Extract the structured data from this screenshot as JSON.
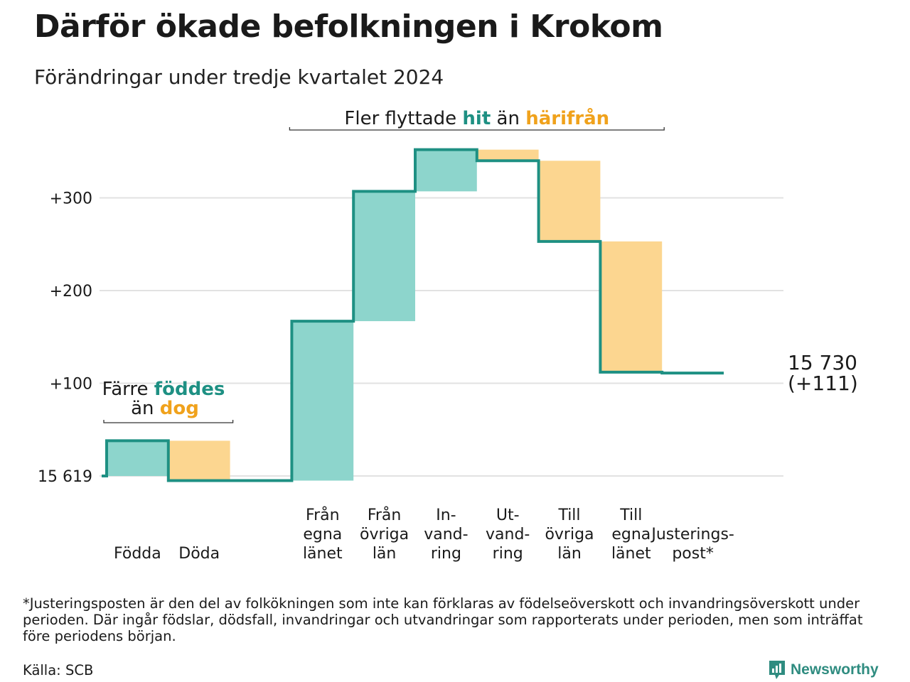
{
  "title": "Därför ökade befolkningen i Krokom",
  "subtitle": "Förändringar under tredje kvartalet 2024",
  "footnote": "*Justeringsposten är den del av folkökningen som inte kan förklaras av födelseöverskott och invandringsöverskott under perioden. Där ingår födslar, dödsfall, invandringar och utvandringar som rapporterats under perioden, men som inträffat före periodens början.",
  "source": "Källa: SCB",
  "brand": "Newsworthy",
  "colors": {
    "increase_fill": "#8dd5cc",
    "decrease_fill": "#fcd690",
    "line": "#1e9083",
    "teal_text": "#1e9083",
    "orange_text": "#f0a21c",
    "grid": "#e2e2e2"
  },
  "chart_data": {
    "type": "waterfall",
    "title": "Därför ökade befolkningen i Krokom",
    "subtitle": "Förändringar under tredje kvartalet 2024",
    "base_label": "15 619",
    "base_value": 15619,
    "y_ticks": [
      {
        "value": 0,
        "label": "15 619"
      },
      {
        "value": 100,
        "label": "+100"
      },
      {
        "value": 200,
        "label": "+200"
      },
      {
        "value": 300,
        "label": "+300"
      }
    ],
    "ylim": [
      -10,
      360
    ],
    "grid": true,
    "categories": [
      {
        "label": [
          "Födda"
        ],
        "start": 0,
        "end": 38
      },
      {
        "label": [
          "Döda"
        ],
        "start": 38,
        "end": -5
      },
      {
        "label": [
          ""
        ],
        "start": -5,
        "end": -5
      },
      {
        "label": [
          "Från",
          "egna",
          "länet"
        ],
        "start": -5,
        "end": 167
      },
      {
        "label": [
          "Från",
          "övriga",
          "län"
        ],
        "start": 167,
        "end": 307
      },
      {
        "label": [
          "In-",
          "vand-",
          "ring"
        ],
        "start": 307,
        "end": 352
      },
      {
        "label": [
          "Ut-",
          "vand-",
          "ring"
        ],
        "start": 352,
        "end": 340
      },
      {
        "label": [
          "Till",
          "övriga",
          "län"
        ],
        "start": 340,
        "end": 253
      },
      {
        "label": [
          "Till",
          "egna",
          "länet"
        ],
        "start": 253,
        "end": 112
      },
      {
        "label": [
          "Justerings-",
          "post*"
        ],
        "start": 112,
        "end": 111
      }
    ],
    "end_label": [
      "15 730",
      "(+111)"
    ],
    "final_value": 15730,
    "net_change": 111,
    "annotations": [
      {
        "parts": [
          {
            "text": "Färre ",
            "style": "plain"
          },
          {
            "text": "föddes",
            "style": "teal"
          }
        ],
        "parts2": [
          {
            "text": "än ",
            "style": "plain"
          },
          {
            "text": "dog",
            "style": "orange"
          }
        ],
        "from_category": 0,
        "to_category": 1
      },
      {
        "parts": [
          {
            "text": "Fler flyttade ",
            "style": "plain"
          },
          {
            "text": "hit",
            "style": "teal"
          },
          {
            "text": " än ",
            "style": "plain"
          },
          {
            "text": "härifrån",
            "style": "orange"
          }
        ],
        "from_category": 3,
        "to_category": 8
      }
    ]
  }
}
